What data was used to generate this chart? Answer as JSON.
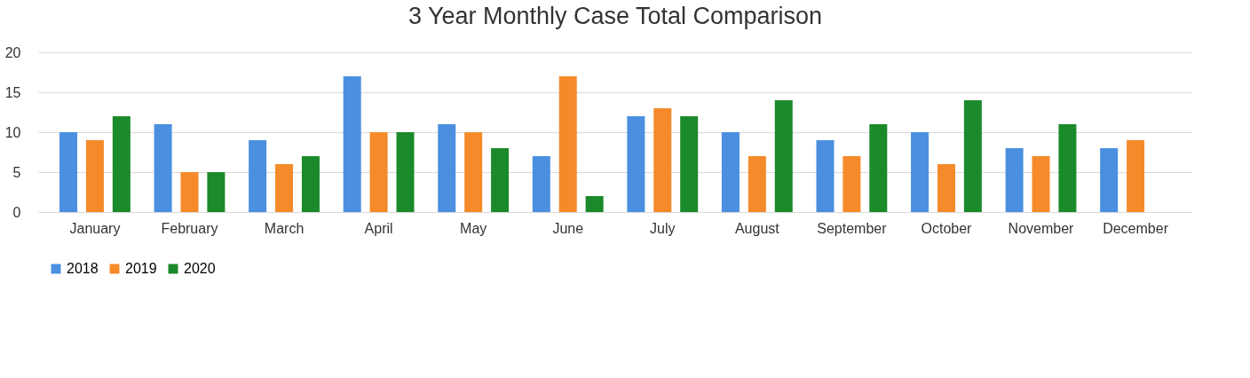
{
  "chart_data": {
    "type": "bar",
    "title": "3 Year Monthly Case Total Comparison",
    "categories": [
      "January",
      "February",
      "March",
      "April",
      "May",
      "June",
      "July",
      "August",
      "September",
      "October",
      "November",
      "December"
    ],
    "series": [
      {
        "name": "2018",
        "color": "#4a8fe0",
        "values": [
          10,
          11,
          9,
          17,
          11,
          7,
          12,
          10,
          9,
          10,
          8,
          8
        ]
      },
      {
        "name": "2019",
        "color": "#f58a2a",
        "values": [
          9,
          5,
          6,
          10,
          10,
          17,
          13,
          7,
          7,
          6,
          7,
          9
        ]
      },
      {
        "name": "2020",
        "color": "#1a8a2a",
        "values": [
          12,
          5,
          7,
          10,
          8,
          2,
          12,
          14,
          11,
          14,
          11,
          null
        ]
      }
    ],
    "ylim": [
      0,
      20
    ],
    "yticks": [
      0,
      5,
      10,
      15,
      20
    ],
    "grid": "y",
    "legend": "bottom"
  }
}
